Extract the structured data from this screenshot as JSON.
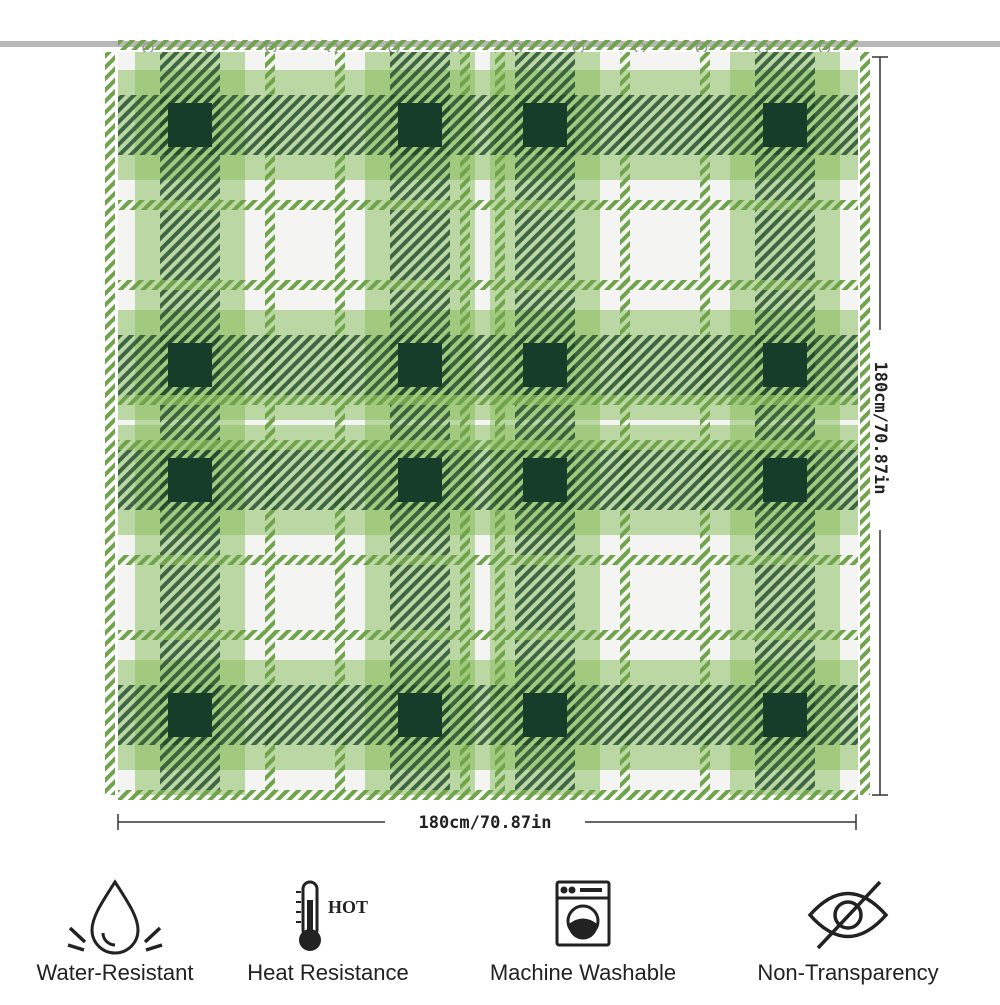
{
  "dimensions": {
    "width": "180cm/70.87in",
    "height": "180cm/70.87in"
  },
  "icon_text": {
    "hot": "HOT"
  },
  "features": [
    {
      "label": "Water-Resistant"
    },
    {
      "label": "Heat Resistance"
    },
    {
      "label": "Machine Washable"
    },
    {
      "label": "Non-Transparency"
    }
  ]
}
